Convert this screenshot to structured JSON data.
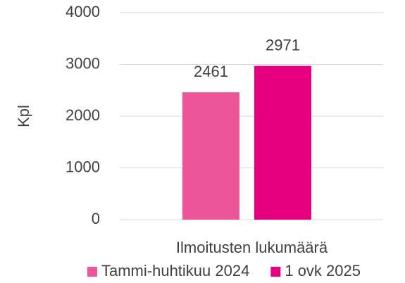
{
  "chart_data": {
    "type": "bar",
    "y_label": "Kpl",
    "categories": [
      "Ilmoitusten lukumäärä"
    ],
    "series": [
      {
        "name": "Tammi-huhtikuu 2024",
        "color": "#ec5597",
        "values": [
          2461
        ]
      },
      {
        "name": "1 ovk 2025",
        "color": "#e6007e",
        "values": [
          2971
        ]
      }
    ],
    "ylim": [
      0,
      4000
    ],
    "yticks": [
      0,
      1000,
      2000,
      3000,
      4000
    ],
    "grid": true,
    "legend": "bottom"
  }
}
